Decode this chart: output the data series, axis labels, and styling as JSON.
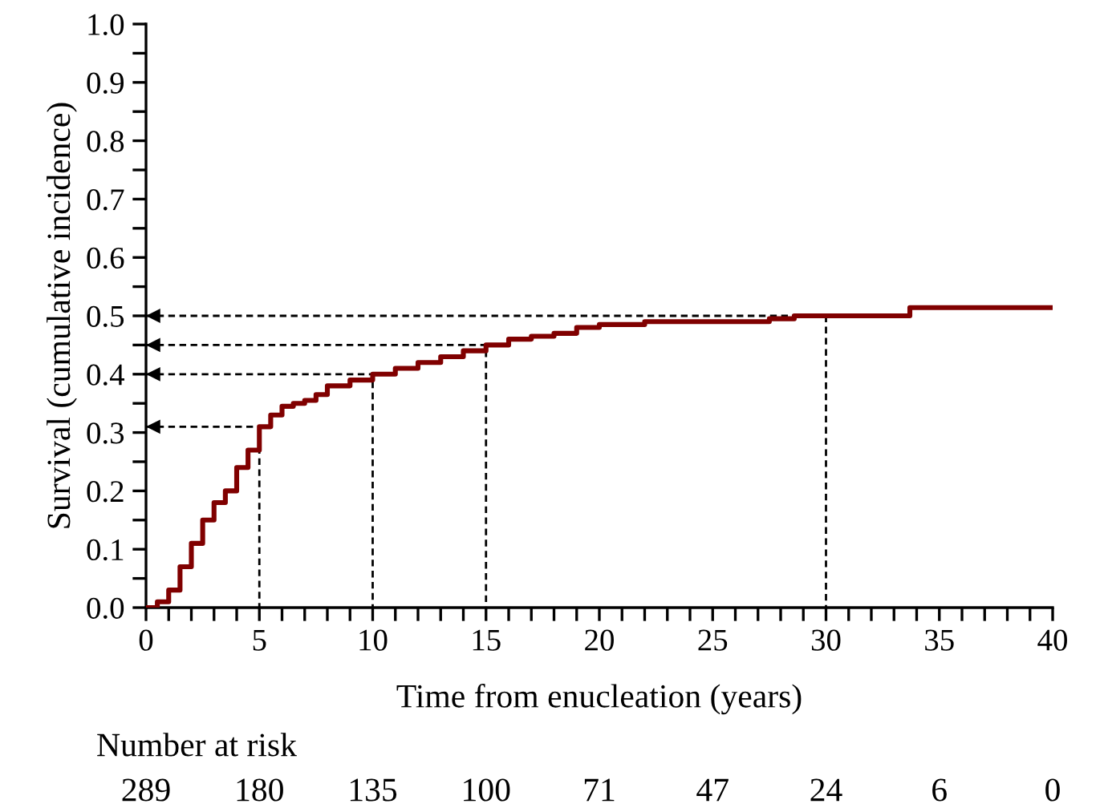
{
  "chart_data": {
    "type": "step",
    "xlabel": "Time from enucleation (years)",
    "ylabel": "Survival (cumulative incidence)",
    "xlim": [
      0,
      40
    ],
    "ylim": [
      0,
      1.0
    ],
    "xticks": [
      0,
      {
        "value": 1,
        "label": null
      },
      {
        "value": 2,
        "label": null
      },
      {
        "value": 3,
        "label": null
      },
      {
        "value": 4,
        "label": null
      },
      5,
      {
        "value": 6,
        "label": null
      },
      {
        "value": 7,
        "label": null
      },
      {
        "value": 8,
        "label": null
      },
      {
        "value": 9,
        "label": null
      },
      10,
      {
        "value": 11,
        "label": null
      },
      {
        "value": 12,
        "label": null
      },
      {
        "value": 13,
        "label": null
      },
      {
        "value": 14,
        "label": null
      },
      15,
      {
        "value": 16,
        "label": null
      },
      {
        "value": 17,
        "label": null
      },
      {
        "value": 18,
        "label": null
      },
      {
        "value": 19,
        "label": null
      },
      20,
      {
        "value": 21,
        "label": null
      },
      {
        "value": 22,
        "label": null
      },
      {
        "value": 23,
        "label": null
      },
      {
        "value": 24,
        "label": null
      },
      25,
      {
        "value": 26,
        "label": null
      },
      {
        "value": 27,
        "label": null
      },
      {
        "value": 28,
        "label": null
      },
      {
        "value": 29,
        "label": null
      },
      30,
      {
        "value": 31,
        "label": null
      },
      {
        "value": 32,
        "label": null
      },
      {
        "value": 33,
        "label": null
      },
      {
        "value": 34,
        "label": null
      },
      35,
      {
        "value": 36,
        "label": null
      },
      {
        "value": 37,
        "label": null
      },
      {
        "value": 38,
        "label": null
      },
      {
        "value": 39,
        "label": null
      },
      40
    ],
    "yticks": [
      {
        "value": 0,
        "label": "0.0"
      },
      {
        "value": 0.05,
        "label": null
      },
      {
        "value": 0.1,
        "label": "0.1"
      },
      {
        "value": 0.15,
        "label": null
      },
      {
        "value": 0.2,
        "label": "0.2"
      },
      {
        "value": 0.25,
        "label": null
      },
      {
        "value": 0.3,
        "label": "0.3"
      },
      {
        "value": 0.35,
        "label": null
      },
      {
        "value": 0.4,
        "label": "0.4"
      },
      {
        "value": 0.45,
        "label": null
      },
      {
        "value": 0.5,
        "label": "0.5"
      },
      {
        "value": 0.55,
        "label": null
      },
      {
        "value": 0.6,
        "label": "0.6"
      },
      {
        "value": 0.65,
        "label": null
      },
      {
        "value": 0.7,
        "label": "0.7"
      },
      {
        "value": 0.75,
        "label": null
      },
      {
        "value": 0.8,
        "label": "0.8"
      },
      {
        "value": 0.85,
        "label": null
      },
      {
        "value": 0.9,
        "label": "0.9"
      },
      {
        "value": 0.95,
        "label": null
      },
      {
        "value": 1.0,
        "label": "1.0"
      }
    ],
    "grid": false,
    "series": [
      {
        "color": "#800000",
        "line_style": "solid",
        "x": [
          0,
          0.5,
          1,
          1.5,
          2,
          2.5,
          3,
          3.5,
          4,
          4.5,
          5,
          5.5,
          6,
          6.5,
          7,
          7.5,
          8,
          9,
          10,
          11,
          12,
          13,
          14,
          15,
          16,
          17,
          18,
          19,
          20,
          22,
          27.5,
          28.6,
          33.7,
          39.9
        ],
        "values": [
          0,
          0.01,
          0.03,
          0.07,
          0.11,
          0.15,
          0.18,
          0.2,
          0.24,
          0.27,
          0.31,
          0.33,
          0.345,
          0.35,
          0.355,
          0.365,
          0.38,
          0.39,
          0.4,
          0.41,
          0.42,
          0.43,
          0.44,
          0.45,
          0.46,
          0.465,
          0.47,
          0.48,
          0.485,
          0.49,
          0.495,
          0.5,
          0.514,
          0.514
        ]
      },
      {
        "type": "line",
        "color": "#000000",
        "line_style": "dashed",
        "x": [
          0,
          5,
          5
        ],
        "values": [
          0.31,
          0.31,
          0
        ]
      },
      {
        "type": "line",
        "color": "#000000",
        "line_style": "dashed",
        "x": [
          0,
          10,
          10
        ],
        "values": [
          0.4,
          0.4,
          0
        ]
      },
      {
        "type": "line",
        "color": "#000000",
        "line_style": "dashed",
        "x": [
          0,
          15,
          15
        ],
        "values": [
          0.45,
          0.45,
          0
        ]
      },
      {
        "type": "line",
        "color": "#000000",
        "line_style": "dashed",
        "x": [
          0,
          30,
          30
        ],
        "values": [
          0.5,
          0.5,
          0
        ]
      }
    ],
    "annotations": [
      "Number at risk",
      "289",
      "180",
      "135",
      "100",
      "71",
      "47",
      "24",
      "6",
      "0"
    ]
  }
}
